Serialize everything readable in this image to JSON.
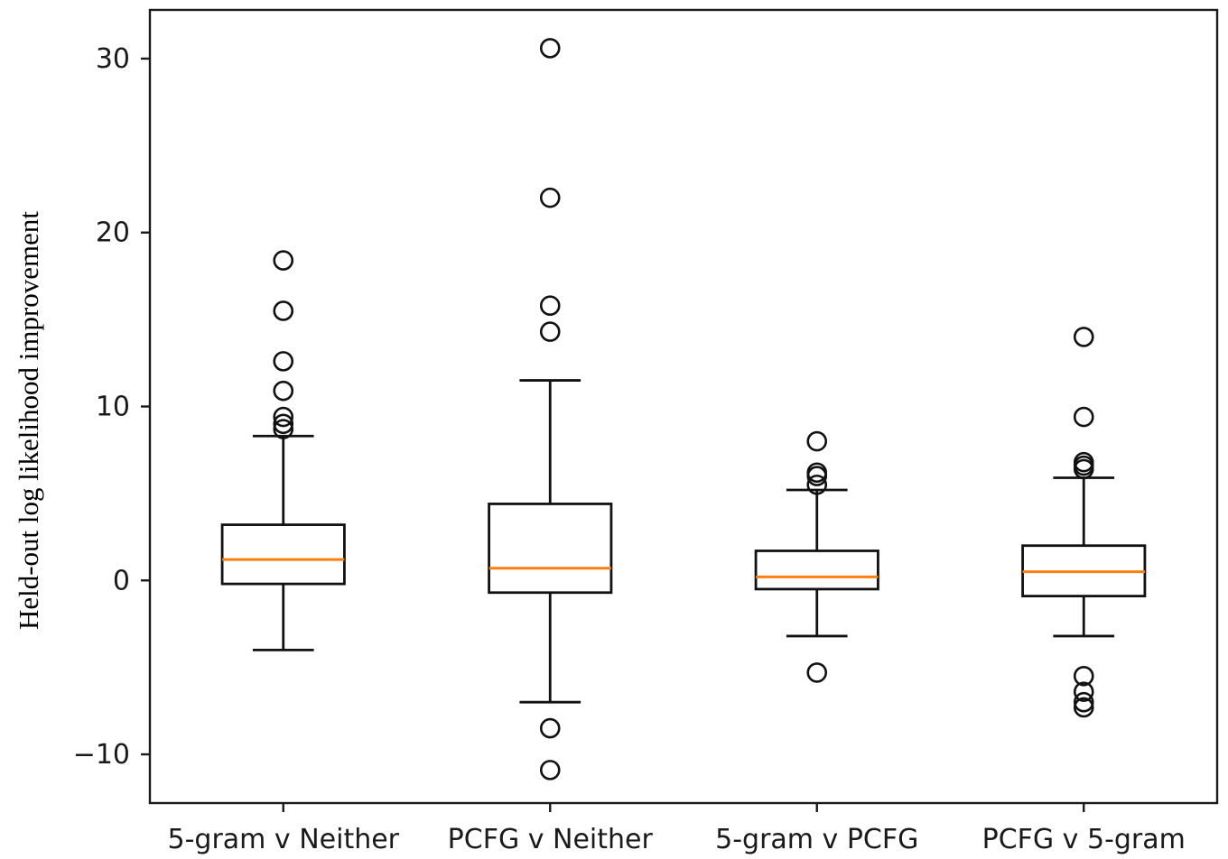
{
  "chart_data": {
    "type": "box",
    "title": "",
    "xlabel": "",
    "ylabel": "Held-out log likelihood improvement",
    "ylim": [
      -12.8,
      32.8
    ],
    "yticks": [
      -10,
      0,
      10,
      20,
      30
    ],
    "ytick_labels": [
      "−10",
      "0",
      "10",
      "20",
      "30"
    ],
    "grid": false,
    "colors": {
      "box": "#000000",
      "median": "#ff7f0e"
    },
    "categories": [
      "5-gram v Neither",
      "PCFG v Neither",
      "5-gram v PCFG",
      "PCFG v 5-gram"
    ],
    "boxes": [
      {
        "whislo": -4.0,
        "q1": -0.2,
        "med": 1.2,
        "q3": 3.2,
        "whishi": 8.3,
        "fliers": [
          8.7,
          9.0,
          9.4,
          10.9,
          12.6,
          15.5,
          18.4
        ]
      },
      {
        "whislo": -7.0,
        "q1": -0.7,
        "med": 0.7,
        "q3": 4.4,
        "whishi": 11.5,
        "fliers": [
          -10.9,
          -8.5,
          14.3,
          15.8,
          22.0,
          30.6
        ]
      },
      {
        "whislo": -3.2,
        "q1": -0.5,
        "med": 0.2,
        "q3": 1.7,
        "whishi": 5.2,
        "fliers": [
          -5.3,
          5.5,
          6.0,
          6.2,
          8.0
        ]
      },
      {
        "whislo": -3.2,
        "q1": -0.9,
        "med": 0.5,
        "q3": 2.0,
        "whishi": 5.9,
        "fliers": [
          -7.3,
          -7.0,
          -6.4,
          -5.5,
          6.4,
          6.6,
          6.8,
          9.4,
          14.0
        ]
      }
    ]
  }
}
